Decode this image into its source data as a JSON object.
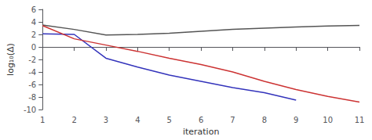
{
  "chart_data": {
    "type": "line",
    "xlabel": "iteration",
    "ylabel": "log₁₀(Δ)",
    "series": [
      {
        "color": "#555555",
        "x": [
          1,
          2,
          3,
          4,
          5,
          6,
          7,
          8,
          9,
          10,
          11
        ],
        "values": [
          3.5,
          2.8,
          1.9,
          2.0,
          2.2,
          2.5,
          2.8,
          3.0,
          3.2,
          3.35,
          3.45
        ]
      },
      {
        "color": "#3333bb",
        "x": [
          1,
          2,
          3,
          4,
          5,
          6,
          7,
          8,
          9
        ],
        "values": [
          2.1,
          2.0,
          -1.8,
          -3.2,
          -4.5,
          -5.5,
          -6.5,
          -7.3,
          -8.5
        ]
      },
      {
        "color": "#cc3333",
        "x": [
          1,
          2,
          3,
          4,
          5,
          6,
          7,
          8,
          9,
          10,
          11
        ],
        "values": [
          3.4,
          1.3,
          0.3,
          -0.7,
          -1.8,
          -2.8,
          -4.0,
          -5.5,
          -6.8,
          -7.9,
          -8.8
        ]
      }
    ],
    "xlim": [
      1,
      11
    ],
    "xticks": [
      1,
      2,
      3,
      4,
      5,
      6,
      7,
      8,
      9,
      10,
      11
    ],
    "ylim": [
      -10,
      6
    ],
    "yticks": [
      -10,
      -8,
      -6,
      -4,
      -2,
      0,
      2,
      4,
      6
    ],
    "grid": false
  }
}
